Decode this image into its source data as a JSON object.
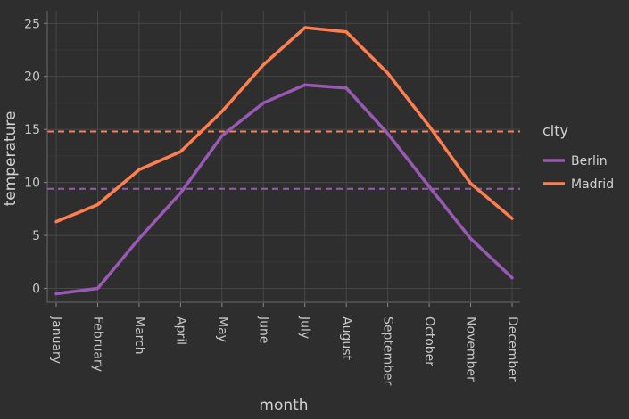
{
  "chart_data": {
    "type": "line",
    "xlabel": "month",
    "ylabel": "temperature",
    "categories": [
      "January",
      "February",
      "March",
      "April",
      "May",
      "June",
      "July",
      "August",
      "September",
      "October",
      "November",
      "December"
    ],
    "ylim": [
      -1.3,
      26.2
    ],
    "yticks": [
      0,
      5,
      10,
      15,
      20,
      25
    ],
    "grid": true,
    "legend": {
      "title": "city",
      "position": "right"
    },
    "series": [
      {
        "name": "Berlin",
        "color": "#9b59b6",
        "mean": 9.4,
        "values": [
          -0.5,
          0.0,
          4.7,
          9.0,
          14.4,
          17.5,
          19.2,
          18.9,
          14.6,
          9.6,
          4.7,
          1.0
        ]
      },
      {
        "name": "Madrid",
        "color": "#ff7f50",
        "mean": 14.8,
        "values": [
          6.3,
          7.9,
          11.2,
          12.9,
          16.7,
          21.1,
          24.6,
          24.2,
          20.3,
          15.3,
          9.9,
          6.6
        ]
      }
    ]
  }
}
